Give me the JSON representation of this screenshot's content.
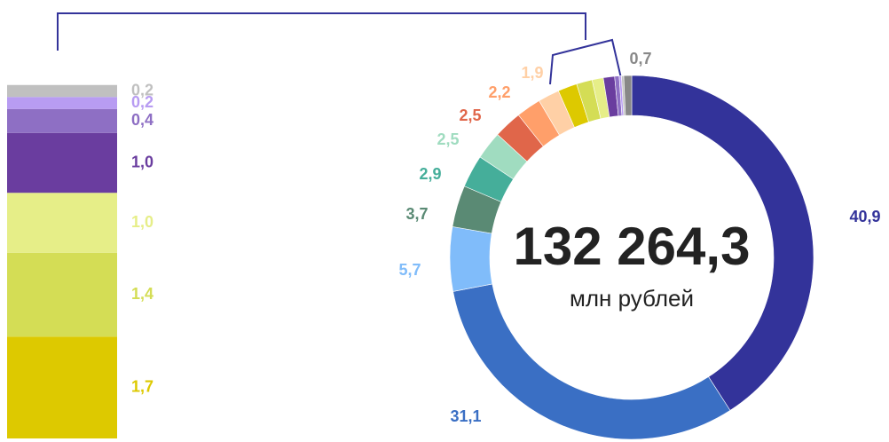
{
  "chart_data": {
    "type": "donut",
    "center_title": "132 264,3",
    "center_subtitle": "млн рублей",
    "values": [
      40.9,
      31.1,
      5.7,
      3.7,
      2.9,
      2.5,
      2.5,
      2.2,
      1.9,
      1.7,
      1.4,
      1.0,
      1.0,
      0.4,
      0.2,
      0.2,
      0.7
    ],
    "value_labels": [
      "40,9",
      "31,1",
      "5,7",
      "3,7",
      "2,9",
      "2,5",
      "2,5",
      "2,2",
      "1,9",
      null,
      null,
      null,
      null,
      null,
      null,
      null,
      "0,7"
    ],
    "colors": [
      "#33339a",
      "#3a6fc4",
      "#80bcfa",
      "#5a8a74",
      "#45ae9a",
      "#a0dcc0",
      "#e0664a",
      "#ff9f6a",
      "#ffd0a6",
      "#ddc900",
      "#d4dd55",
      "#e6ee88",
      "#6a3d9f",
      "#8e6fc4",
      "#b89cf2",
      "#c0c0c0",
      "#888888"
    ],
    "breakdown": {
      "type": "bar",
      "values": [
        1.7,
        1.4,
        1.0,
        1.0,
        0.4,
        0.2,
        0.2
      ],
      "value_labels": [
        "1,7",
        "1,4",
        "1,0",
        "1,0",
        "0,4",
        "0,2",
        "0,2"
      ],
      "colors": [
        "#ddc900",
        "#d4dd55",
        "#e6ee88",
        "#6a3d9f",
        "#8e6fc4",
        "#b89cf2",
        "#c0c0c0"
      ]
    }
  }
}
